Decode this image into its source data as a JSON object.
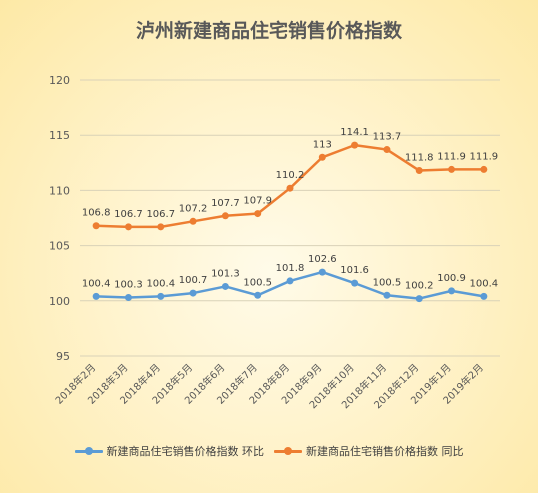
{
  "chart_data": {
    "type": "line",
    "title": "泸州新建商品住宅销售价格指数",
    "categories": [
      "2018年2月",
      "2018年3月",
      "2018年4月",
      "2018年5月",
      "2018年6月",
      "2018年7月",
      "2018年8月",
      "2018年9月",
      "2018年10月",
      "2018年11月",
      "2018年12月",
      "2019年1月",
      "2019年2月"
    ],
    "series": [
      {
        "name": "新建商品住宅销售价格指数 环比",
        "color": "#5b9bd5",
        "values": [
          100.4,
          100.3,
          100.4,
          100.7,
          101.3,
          100.5,
          101.8,
          102.6,
          101.6,
          100.5,
          100.2,
          100.9,
          100.4
        ]
      },
      {
        "name": "新建商品住宅销售价格指数 同比",
        "color": "#ed7d31",
        "values": [
          106.8,
          106.7,
          106.7,
          107.2,
          107.7,
          107.9,
          110.2,
          113,
          114.1,
          113.7,
          111.8,
          111.9,
          111.9
        ]
      }
    ],
    "ylim": [
      95,
      120
    ],
    "yticks": [
      95,
      100,
      105,
      110,
      115,
      120
    ],
    "grid": true,
    "legend_position": "bottom",
    "data_labels": true
  }
}
